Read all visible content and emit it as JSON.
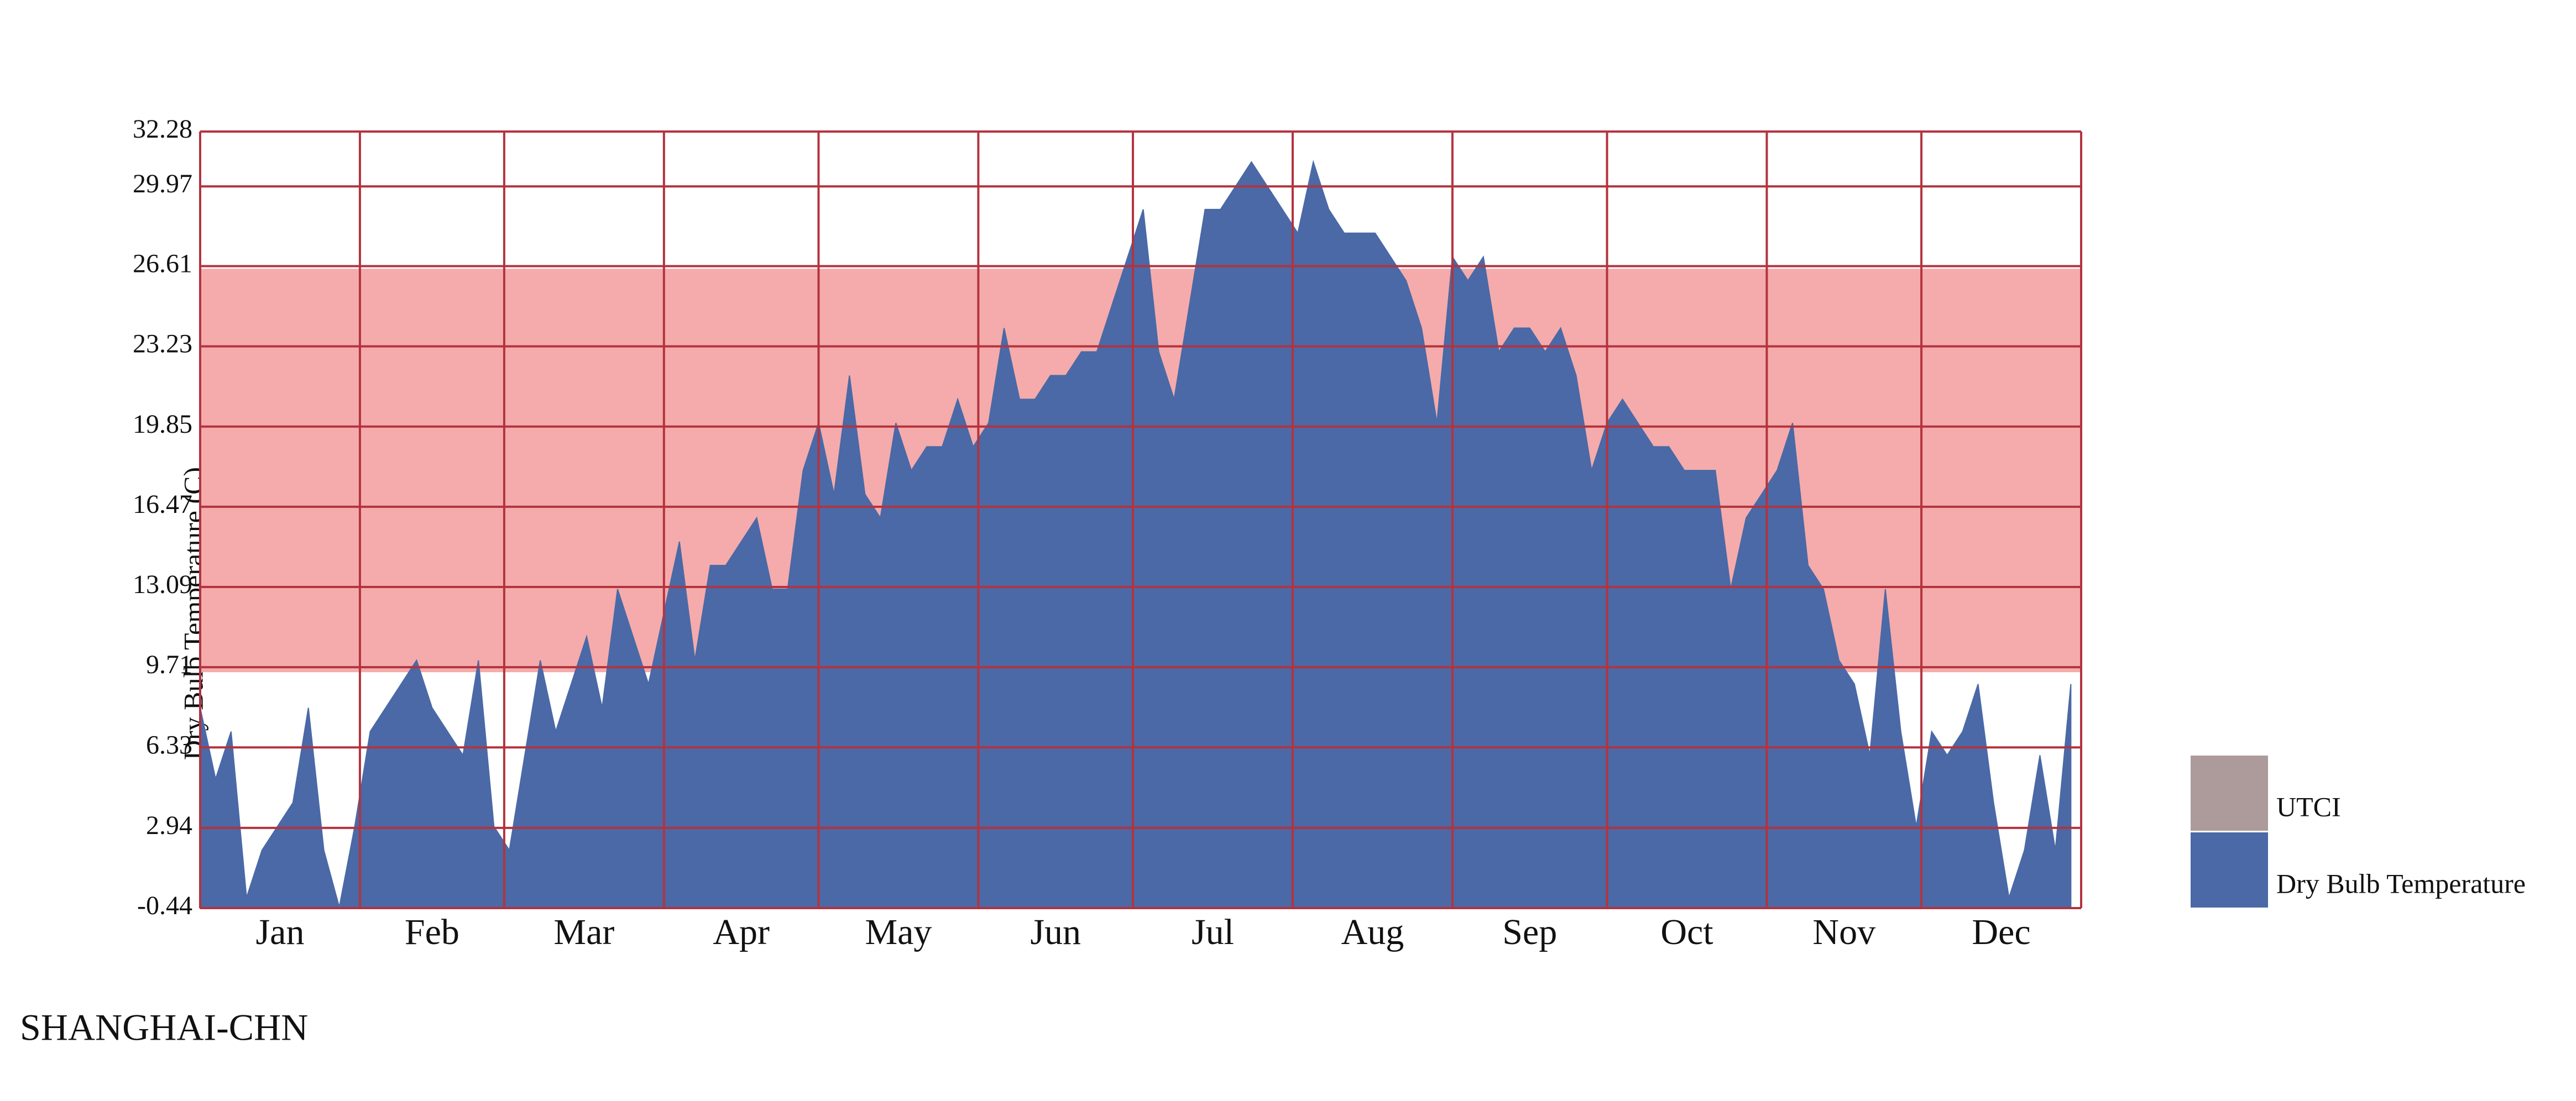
{
  "chart_data": {
    "type": "area",
    "location": "SHANGHAI-CHN",
    "y_label": "Dry Bulb Temperature (C)",
    "ylim": [
      -0.44,
      32.28
    ],
    "yticks": [
      -0.44,
      2.94,
      6.33,
      9.71,
      13.09,
      16.47,
      19.85,
      23.23,
      26.61,
      29.97,
      32.28
    ],
    "xlim": [
      0,
      365
    ],
    "xticks": [
      {
        "value": 15.5,
        "label": "Jan"
      },
      {
        "value": 45,
        "label": "Feb"
      },
      {
        "value": 74.5,
        "label": "Mar"
      },
      {
        "value": 105,
        "label": "Apr"
      },
      {
        "value": 135.5,
        "label": "May"
      },
      {
        "value": 166,
        "label": "Jun"
      },
      {
        "value": 196.5,
        "label": "Jul"
      },
      {
        "value": 227.5,
        "label": "Aug"
      },
      {
        "value": 258,
        "label": "Sep"
      },
      {
        "value": 288.5,
        "label": "Oct"
      },
      {
        "value": 319,
        "label": "Nov"
      },
      {
        "value": 349.5,
        "label": "Dec"
      }
    ],
    "xgrid": [
      0,
      31,
      59,
      90,
      120,
      151,
      181,
      212,
      243,
      273,
      304,
      334,
      365
    ],
    "grid": true,
    "legend": "right",
    "band": {
      "name": "UTCI",
      "low": 9.5,
      "high": 26.5,
      "color": "#f5abab",
      "legend_color": "#ad9b9b"
    },
    "x": [
      0,
      3,
      6,
      9,
      12,
      15,
      18,
      21,
      24,
      27,
      30,
      33,
      36,
      39,
      42,
      45,
      48,
      51,
      54,
      57,
      60,
      63,
      66,
      69,
      72,
      75,
      78,
      81,
      84,
      87,
      90,
      93,
      96,
      99,
      102,
      105,
      108,
      111,
      114,
      117,
      120,
      123,
      126,
      129,
      132,
      135,
      138,
      141,
      144,
      147,
      150,
      153,
      156,
      159,
      162,
      165,
      168,
      171,
      174,
      177,
      180,
      183,
      186,
      189,
      192,
      195,
      198,
      201,
      204,
      207,
      210,
      213,
      216,
      219,
      222,
      225,
      228,
      231,
      234,
      237,
      240,
      243,
      246,
      249,
      252,
      255,
      258,
      261,
      264,
      267,
      270,
      273,
      276,
      279,
      282,
      285,
      288,
      291,
      294,
      297,
      300,
      303,
      306,
      309,
      312,
      315,
      318,
      321,
      324,
      327,
      330,
      333,
      336,
      339,
      342,
      345,
      348,
      351,
      354,
      357,
      360,
      363
    ],
    "series": [
      {
        "name": "Dry Bulb Temperature",
        "color": "#4a69a6",
        "values": [
          8,
          5,
          7,
          0,
          2,
          3,
          4,
          8,
          2,
          -0.4,
          3,
          7,
          8,
          9,
          10,
          8,
          7,
          6,
          10,
          3,
          2,
          6,
          10,
          7,
          9,
          11,
          8,
          13,
          11,
          9,
          12,
          15,
          10,
          14,
          14,
          15,
          16,
          13,
          13,
          18,
          20,
          17,
          22,
          17,
          16,
          20,
          18,
          19,
          19,
          21,
          19,
          20,
          24,
          21,
          21,
          22,
          22,
          23,
          23,
          25,
          27,
          29,
          23,
          21,
          25,
          29,
          29,
          30,
          31,
          30,
          29,
          28,
          31,
          29,
          28,
          28,
          28,
          27,
          26,
          24,
          20,
          27,
          26,
          27,
          23,
          24,
          24,
          23,
          24,
          22,
          18,
          20,
          21,
          20,
          19,
          19,
          18,
          18,
          18,
          13,
          16,
          17,
          18,
          20,
          14,
          13,
          10,
          9,
          6,
          13,
          7,
          3,
          7,
          6,
          7,
          9,
          4,
          0,
          2,
          6,
          2,
          9
        ]
      }
    ]
  }
}
